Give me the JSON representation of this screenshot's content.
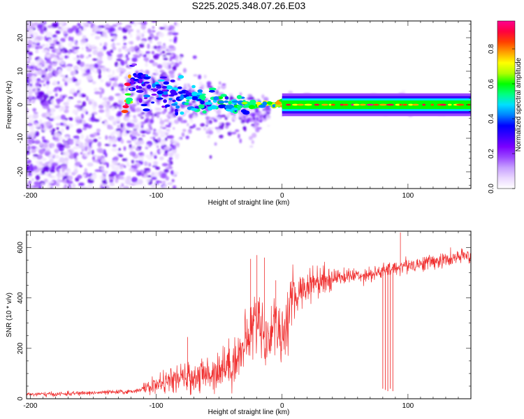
{
  "title": "S225.2025.348.07.26.E03",
  "chart_data": [
    {
      "id": "spectrogram",
      "type": "heatmap",
      "xlabel": "Height of straight line (km)",
      "ylabel": "Frequency (Hz)",
      "xlim": [
        -203,
        150
      ],
      "ylim": [
        -25,
        25
      ],
      "xticks": [
        -200,
        -100,
        0,
        100
      ],
      "yticks": [
        -20,
        -10,
        0,
        10,
        20
      ],
      "colorbar": {
        "label": "Normalized spectral amplitude",
        "range": [
          0,
          0.96
        ],
        "ticks": [
          "0.0",
          "0.2",
          "0.4",
          "0.6",
          "0.8"
        ],
        "ramp": [
          "#ffffff",
          "#ead7ff",
          "#c7a0ff",
          "#9a47ff",
          "#7a00ff",
          "#3a00ff",
          "#0000ff",
          "#0080ff",
          "#00e0ff",
          "#00ff80",
          "#00ff00",
          "#b0ff00",
          "#ffff00",
          "#ffa000",
          "#ff4000",
          "#ff0040",
          "#ff0090"
        ]
      },
      "ridge": {
        "description_points": [
          {
            "x": -120,
            "f": 5,
            "amp": 0.35
          },
          {
            "x": -100,
            "f": 5,
            "amp": 0.45
          },
          {
            "x": -80,
            "f": 2,
            "amp": 0.5
          },
          {
            "x": -60,
            "f": 1,
            "amp": 0.55
          },
          {
            "x": -40,
            "f": 0,
            "amp": 0.6
          },
          {
            "x": -20,
            "f": 0,
            "amp": 0.7
          },
          {
            "x": 0,
            "f": 0.5,
            "amp": 0.8
          },
          {
            "x": 20,
            "f": 0,
            "amp": 0.85
          },
          {
            "x": 60,
            "f": 0,
            "amp": 0.85
          },
          {
            "x": 100,
            "f": 0,
            "amp": 0.9
          },
          {
            "x": 150,
            "f": 0,
            "amp": 0.9
          }
        ]
      }
    },
    {
      "id": "snr",
      "type": "line",
      "xlabel": "Height of straight line (km)",
      "ylabel": "SNR (10 * v/v)",
      "xlim": [
        -203,
        150
      ],
      "ylim": [
        0,
        665
      ],
      "xticks": [
        -200,
        -100,
        0,
        100
      ],
      "yticks": [
        0,
        200,
        400,
        600
      ],
      "color": "#f03030",
      "series": [
        {
          "name": "SNR",
          "x": [
            -203,
            -180,
            -160,
            -140,
            -120,
            -110,
            -100,
            -90,
            -80,
            -70,
            -60,
            -50,
            -40,
            -30,
            -27,
            -25,
            -22,
            -20,
            -17,
            -15,
            -12,
            -10,
            -7,
            -5,
            -2,
            0,
            5,
            10,
            15,
            20,
            25,
            30,
            40,
            50,
            60,
            70,
            78,
            80,
            82,
            85,
            88,
            90,
            100,
            110,
            120,
            130,
            140,
            150
          ],
          "y": [
            18,
            18,
            22,
            25,
            28,
            40,
            55,
            70,
            80,
            85,
            95,
            120,
            140,
            200,
            250,
            270,
            300,
            310,
            320,
            260,
            210,
            240,
            320,
            300,
            270,
            230,
            340,
            400,
            430,
            450,
            465,
            470,
            480,
            485,
            490,
            495,
            500,
            510,
            505,
            510,
            515,
            520,
            530,
            535,
            545,
            550,
            560,
            570
          ]
        }
      ],
      "dips": [
        {
          "x": 80,
          "min": 40
        },
        {
          "x": 82,
          "min": 35
        },
        {
          "x": 84,
          "min": 30
        },
        {
          "x": 86,
          "min": 40
        },
        {
          "x": 88,
          "min": 30
        }
      ],
      "spikes": [
        {
          "x": -75,
          "y": 245
        },
        {
          "x": -25,
          "y": 555
        },
        {
          "x": -20,
          "y": 570
        },
        {
          "x": -14,
          "y": 560
        },
        {
          "x": -5,
          "y": 470
        },
        {
          "x": 94,
          "y": 660
        }
      ]
    }
  ]
}
